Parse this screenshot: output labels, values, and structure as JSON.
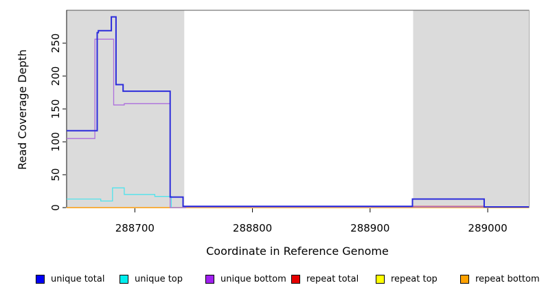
{
  "chart_data": {
    "type": "line",
    "title": "",
    "xlabel": "Coordinate in Reference Genome",
    "ylabel": "Read Coverage Depth",
    "xlim": [
      288642,
      289035
    ],
    "ylim": [
      0,
      300
    ],
    "x_ticks": [
      "288700",
      "288800",
      "288900",
      "289000"
    ],
    "x_tick_values": [
      288700,
      288800,
      288900,
      289000
    ],
    "y_ticks": [
      "0",
      "50",
      "100",
      "150",
      "200",
      "250"
    ],
    "y_tick_values": [
      0,
      50,
      100,
      150,
      200,
      250
    ],
    "grid": false,
    "legend_position": "bottom",
    "shaded_regions": {
      "color": "#DBDBDB",
      "ranges": [
        [
          288642,
          288742
        ],
        [
          288936,
          289035
        ]
      ]
    },
    "series": [
      {
        "name": "unique total",
        "color": "#2B2BDB",
        "legend_color": "#0000F5",
        "width": 2,
        "points": [
          [
            288642,
            117
          ],
          [
            288668,
            266
          ],
          [
            288669,
            269
          ],
          [
            288680,
            290
          ],
          [
            288684,
            187
          ],
          [
            288690,
            177
          ],
          [
            288730,
            16
          ],
          [
            288741,
            2
          ],
          [
            288936,
            13
          ],
          [
            288997,
            1
          ],
          [
            289035,
            1
          ]
        ]
      },
      {
        "name": "unique top",
        "color": "#4FE3EC",
        "legend_color": "#00EEEE",
        "width": 1.3,
        "points": [
          [
            288642,
            13
          ],
          [
            288671,
            10
          ],
          [
            288681,
            30
          ],
          [
            288691,
            20
          ],
          [
            288717,
            17
          ],
          [
            288731,
            0
          ],
          [
            288743,
            1
          ],
          [
            289035,
            1
          ]
        ]
      },
      {
        "name": "unique bottom",
        "color": "#AC6EDC",
        "legend_color": "#A020F0",
        "width": 1.3,
        "points": [
          [
            288642,
            105
          ],
          [
            288666,
            256
          ],
          [
            288682,
            156
          ],
          [
            288691,
            158
          ],
          [
            288730,
            0
          ],
          [
            288743,
            1
          ],
          [
            289035,
            1
          ]
        ]
      },
      {
        "name": "repeat total",
        "color": "#DE4B52",
        "legend_color": "#E60000",
        "width": 1.3,
        "points": [
          [
            288642,
            0
          ],
          [
            288743,
            1
          ],
          [
            288936,
            2
          ],
          [
            288997,
            1
          ],
          [
            289035,
            1
          ]
        ]
      },
      {
        "name": "repeat top",
        "color": "#F0F000",
        "legend_color": "#FFFF00",
        "width": 1.3,
        "points": [
          [
            288642,
            0
          ],
          [
            289035,
            0
          ]
        ]
      },
      {
        "name": "repeat bottom",
        "color": "#FF9C12",
        "legend_color": "#FFA200",
        "width": 1.3,
        "points": [
          [
            288642,
            0
          ],
          [
            289035,
            0
          ]
        ]
      }
    ],
    "draw_order": [
      "repeat total",
      "repeat top",
      "repeat bottom",
      "unique top",
      "unique bottom",
      "unique total"
    ]
  }
}
